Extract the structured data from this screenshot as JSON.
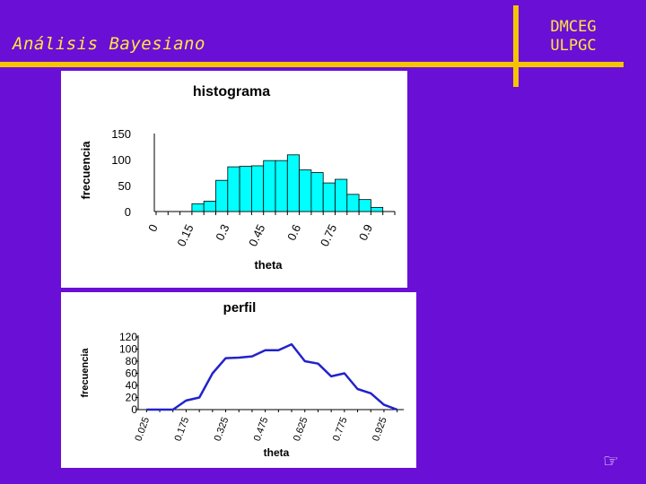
{
  "slide": {
    "title": "Análisis Bayesiano",
    "org_line1": "DMCEG",
    "org_line2": "ULPGC",
    "footer_icon": "pointing-hand-icon"
  },
  "colors": {
    "background": "#6a0fd6",
    "accent": "#f5c400",
    "title_text": "#ffe640",
    "bar_fill": "#00ffff",
    "line": "#2222cc"
  },
  "chart_data": [
    {
      "type": "bar",
      "title": "histograma",
      "xlabel": "theta",
      "ylabel": "frecuencia",
      "ylim": [
        0,
        150
      ],
      "yticks": [
        "0",
        "50",
        "100",
        "150"
      ],
      "xticks": [
        "0",
        "0.15",
        "0.3",
        "0.45",
        "0.6",
        "0.75",
        "0.9"
      ],
      "bin_edges_start": 0,
      "bin_width": 0.05,
      "bins": 20,
      "values": [
        0,
        0,
        0,
        15,
        20,
        60,
        86,
        87,
        88,
        98,
        98,
        109,
        80,
        75,
        55,
        62,
        33,
        23,
        8,
        0
      ],
      "grid": false,
      "legend": "none"
    },
    {
      "type": "line",
      "title": "perfil",
      "xlabel": "theta",
      "ylabel": "frecuencia",
      "ylim": [
        0,
        120
      ],
      "yticks": [
        "0",
        "20",
        "40",
        "60",
        "80",
        "100",
        "120"
      ],
      "xticks": [
        "0.025",
        "0.175",
        "0.325",
        "0.475",
        "0.625",
        "0.775",
        "0.925"
      ],
      "x": [
        0.025,
        0.075,
        0.125,
        0.175,
        0.225,
        0.275,
        0.325,
        0.375,
        0.425,
        0.475,
        0.525,
        0.575,
        0.625,
        0.675,
        0.725,
        0.775,
        0.825,
        0.875,
        0.925,
        0.975
      ],
      "values": [
        0,
        0,
        0,
        15,
        20,
        60,
        85,
        86,
        88,
        98,
        98,
        108,
        80,
        76,
        55,
        60,
        34,
        27,
        8,
        0
      ],
      "grid": false,
      "legend": "none"
    }
  ]
}
